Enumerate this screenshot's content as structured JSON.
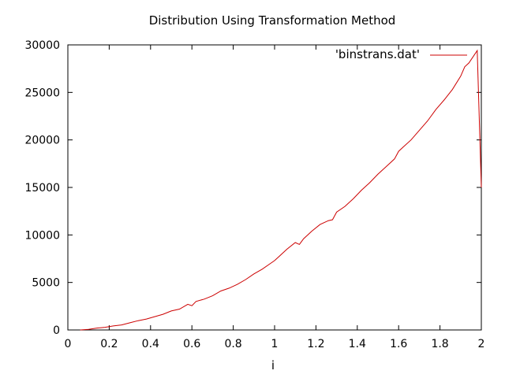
{
  "chart_data": {
    "type": "line",
    "title": "Distribution Using Transformation Method",
    "xlabel": "i",
    "ylabel": "",
    "xlim": [
      0,
      2
    ],
    "ylim": [
      0,
      30000
    ],
    "x_ticks": [
      "0",
      "0.2",
      "0.4",
      "0.6",
      "0.8",
      "1",
      "1.2",
      "1.4",
      "1.6",
      "1.8",
      "2"
    ],
    "x_tick_values": [
      0,
      0.2,
      0.4,
      0.6,
      0.8,
      1.0,
      1.2,
      1.4,
      1.6,
      1.8,
      2.0
    ],
    "y_ticks": [
      "0",
      "5000",
      "10000",
      "15000",
      "20000",
      "25000",
      "30000"
    ],
    "y_tick_values": [
      0,
      5000,
      10000,
      15000,
      20000,
      25000,
      30000
    ],
    "grid": false,
    "legend_position": "top-right",
    "colors": {
      "series": "#cc0000",
      "axis": "#000000"
    },
    "series": [
      {
        "name": "'binstrans.dat'",
        "x": [
          0.06,
          0.1,
          0.14,
          0.18,
          0.22,
          0.26,
          0.3,
          0.34,
          0.38,
          0.42,
          0.46,
          0.5,
          0.54,
          0.58,
          0.6,
          0.62,
          0.66,
          0.7,
          0.74,
          0.78,
          0.82,
          0.86,
          0.9,
          0.94,
          0.98,
          1.0,
          1.02,
          1.06,
          1.1,
          1.12,
          1.14,
          1.18,
          1.22,
          1.26,
          1.28,
          1.3,
          1.34,
          1.38,
          1.42,
          1.46,
          1.5,
          1.54,
          1.58,
          1.6,
          1.62,
          1.66,
          1.7,
          1.74,
          1.78,
          1.82,
          1.86,
          1.9,
          1.92,
          1.94,
          1.98,
          2.0
        ],
        "values": [
          0,
          70,
          200,
          280,
          420,
          530,
          750,
          980,
          1150,
          1400,
          1650,
          2000,
          2200,
          2700,
          2550,
          3000,
          3250,
          3600,
          4100,
          4400,
          4800,
          5300,
          5900,
          6400,
          7000,
          7300,
          7700,
          8500,
          9200,
          9000,
          9600,
          10400,
          11100,
          11500,
          11600,
          12400,
          13000,
          13800,
          14700,
          15500,
          16400,
          17200,
          18000,
          18800,
          19200,
          20000,
          21000,
          22000,
          23200,
          24200,
          25300,
          26700,
          27700,
          28100,
          29400,
          15000
        ]
      }
    ]
  }
}
